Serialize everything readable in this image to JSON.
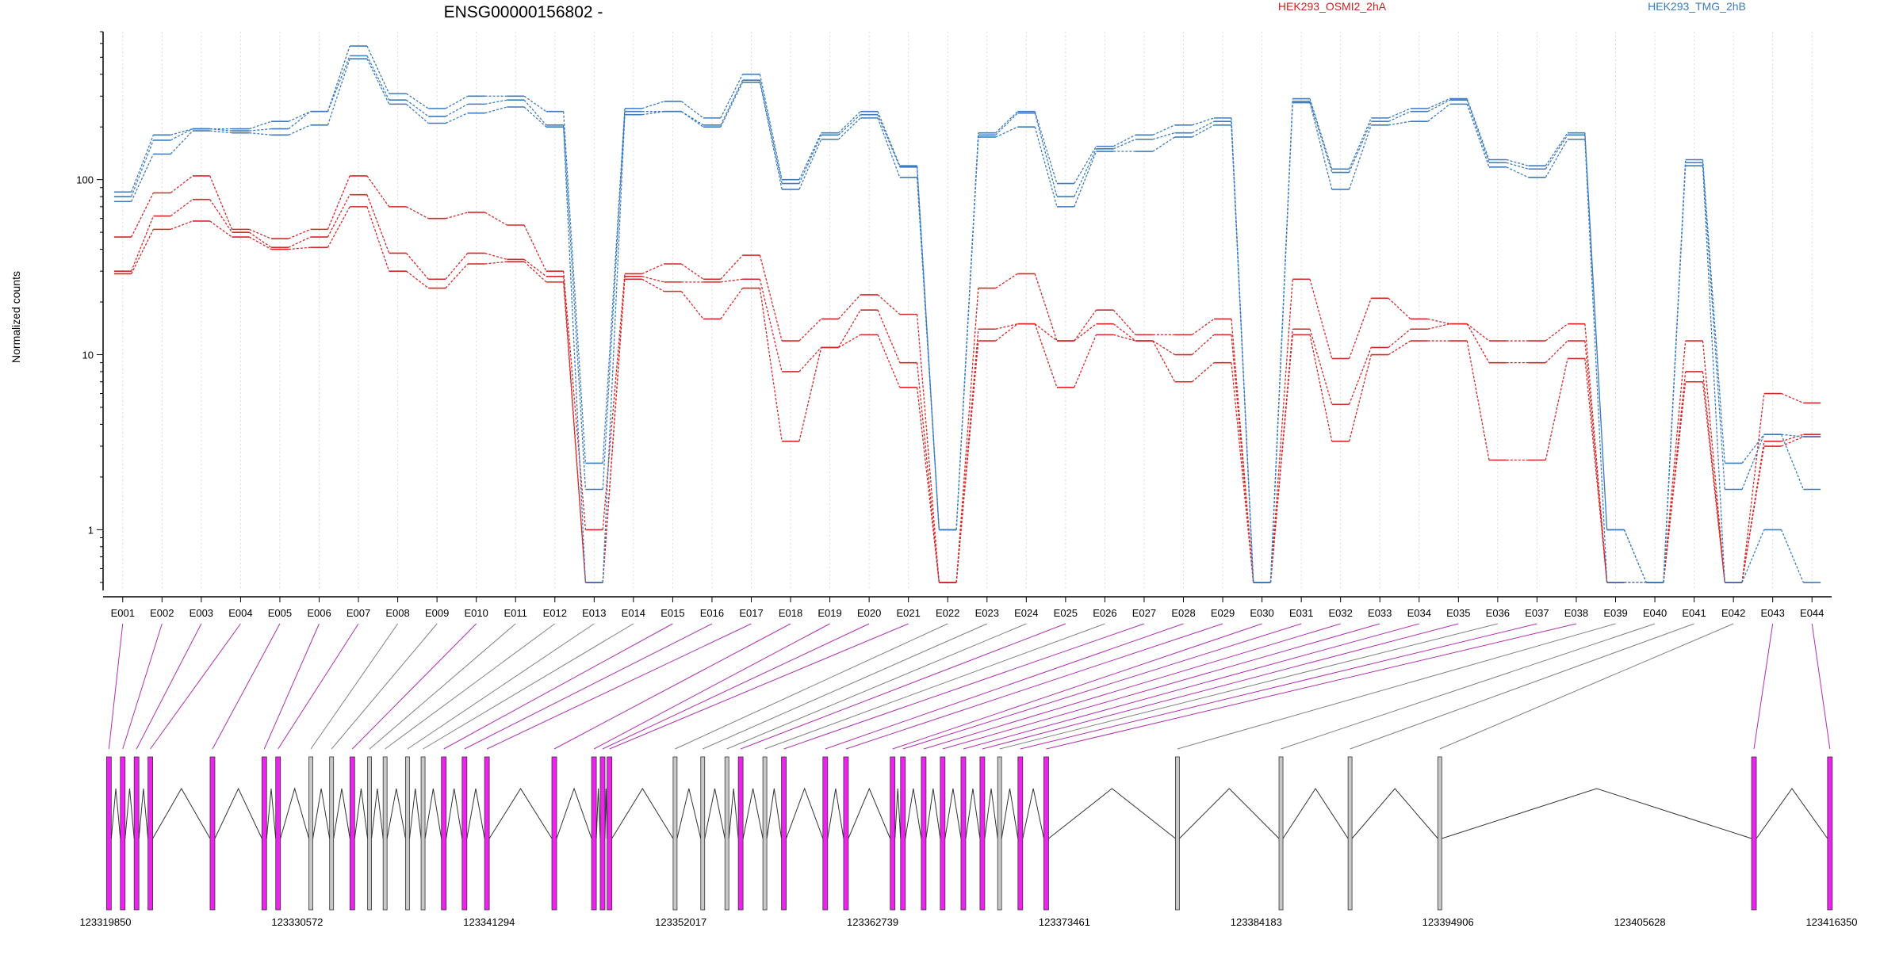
{
  "colors": {
    "sample_a": "#d62728",
    "sample_b": "#3b7bbf",
    "exon_highlight": "#ee22ee",
    "exon_plain": "#c8c8c8",
    "connector_highlight": "#b030b0",
    "connector_plain": "#808080"
  },
  "chart_data": {
    "type": "line",
    "title": "ENSG00000156802 -",
    "ylabel": "Normalized counts",
    "yscale": "log",
    "ylim": [
      0.45,
      700
    ],
    "yticks": [
      {
        "value": 1,
        "label": "1"
      },
      {
        "value": 10,
        "label": "10"
      },
      {
        "value": 100,
        "label": "100"
      }
    ],
    "legend": [
      {
        "name": "HEK293_OSMI2_2hA",
        "color": "#d62728"
      },
      {
        "name": "HEK293_TMG_2hB",
        "color": "#3b7bbf"
      }
    ],
    "grid": "vertical dotted at each exon",
    "categories": [
      "E001",
      "E002",
      "E003",
      "E004",
      "E005",
      "E006",
      "E007",
      "E008",
      "E009",
      "E010",
      "E011",
      "E012",
      "E013",
      "E014",
      "E015",
      "E016",
      "E017",
      "E018",
      "E019",
      "E020",
      "E021",
      "E022",
      "E023",
      "E024",
      "E025",
      "E026",
      "E027",
      "E028",
      "E029",
      "E030",
      "E031",
      "E032",
      "E033",
      "E034",
      "E035",
      "E036",
      "E037",
      "E038",
      "E039",
      "E040",
      "E041",
      "E042",
      "E043",
      "E044"
    ],
    "series": [
      {
        "group": "HEK293_OSMI2_2hA",
        "values": [
          47,
          84,
          105,
          52,
          46,
          52,
          105,
          70,
          60,
          65,
          55,
          30,
          1.0,
          29,
          33,
          27,
          37,
          12,
          16,
          22,
          17,
          0.5,
          24,
          29,
          12,
          18,
          13,
          13,
          16,
          0.5,
          27,
          9.5,
          21,
          16,
          15,
          12,
          12,
          15,
          0.5,
          0.5,
          12,
          0.5,
          6.0,
          5.3
        ]
      },
      {
        "group": "HEK293_OSMI2_2hA",
        "values": [
          30,
          62,
          77,
          50,
          41,
          47,
          82,
          38,
          27,
          38,
          35,
          28,
          0.5,
          28,
          26,
          26,
          27,
          8,
          11,
          18,
          9,
          0.5,
          14,
          15,
          12,
          15,
          12,
          10,
          13,
          0.5,
          14,
          5.2,
          11,
          14,
          15,
          9,
          9,
          12,
          0.5,
          0.5,
          8,
          0.5,
          3.2,
          3.5
        ]
      },
      {
        "group": "HEK293_OSMI2_2hA",
        "values": [
          29,
          52,
          58,
          47,
          40,
          41,
          70,
          30,
          24,
          33,
          34,
          26,
          0.5,
          27,
          23,
          16,
          24,
          3.2,
          11,
          13,
          6.5,
          0.5,
          12,
          15,
          6.5,
          13,
          12,
          7,
          9,
          0.5,
          13,
          3.2,
          10,
          12,
          12,
          2.5,
          2.5,
          9.5,
          0.5,
          0.5,
          7,
          0.5,
          3.0,
          3.4
        ]
      },
      {
        "group": "HEK293_TMG_2hB",
        "values": [
          85,
          180,
          195,
          195,
          215,
          245,
          580,
          310,
          255,
          300,
          300,
          245,
          2.4,
          255,
          280,
          225,
          400,
          100,
          185,
          245,
          120,
          1.0,
          185,
          245,
          95,
          155,
          180,
          205,
          225,
          0.5,
          290,
          115,
          225,
          255,
          290,
          130,
          120,
          185,
          1.0,
          0.5,
          130,
          2.4,
          3.5,
          3.4
        ]
      },
      {
        "group": "HEK293_TMG_2hB",
        "values": [
          80,
          168,
          195,
          190,
          195,
          245,
          510,
          285,
          230,
          270,
          285,
          205,
          1.7,
          245,
          245,
          205,
          370,
          95,
          180,
          235,
          118,
          1.0,
          180,
          240,
          80,
          150,
          170,
          185,
          215,
          0.5,
          280,
          110,
          215,
          245,
          285,
          125,
          115,
          180,
          1.0,
          0.5,
          125,
          1.7,
          3.5,
          1.7
        ]
      },
      {
        "group": "HEK293_TMG_2hB",
        "values": [
          75,
          140,
          190,
          185,
          180,
          205,
          490,
          270,
          210,
          240,
          260,
          200,
          0.5,
          235,
          245,
          200,
          360,
          88,
          170,
          225,
          103,
          1.0,
          175,
          200,
          70,
          145,
          145,
          175,
          205,
          0.5,
          275,
          88,
          205,
          215,
          270,
          118,
          103,
          170,
          0.5,
          0.5,
          120,
          0.5,
          1.0,
          0.5
        ]
      }
    ],
    "gene_model": {
      "coordinate_ticks": [
        "123319850",
        "123330572",
        "123341294",
        "123352017",
        "123362739",
        "123373461",
        "123384183",
        "123394906",
        "123405628",
        "123416350"
      ],
      "exon_highlight": [
        true,
        true,
        true,
        true,
        true,
        true,
        true,
        false,
        false,
        true,
        false,
        false,
        false,
        false,
        true,
        true,
        true,
        true,
        true,
        true,
        true,
        false,
        false,
        false,
        true,
        false,
        true,
        true,
        true,
        true,
        true,
        true,
        true,
        true,
        true,
        false,
        true,
        true,
        false,
        false,
        false,
        false,
        true,
        true
      ]
    }
  }
}
